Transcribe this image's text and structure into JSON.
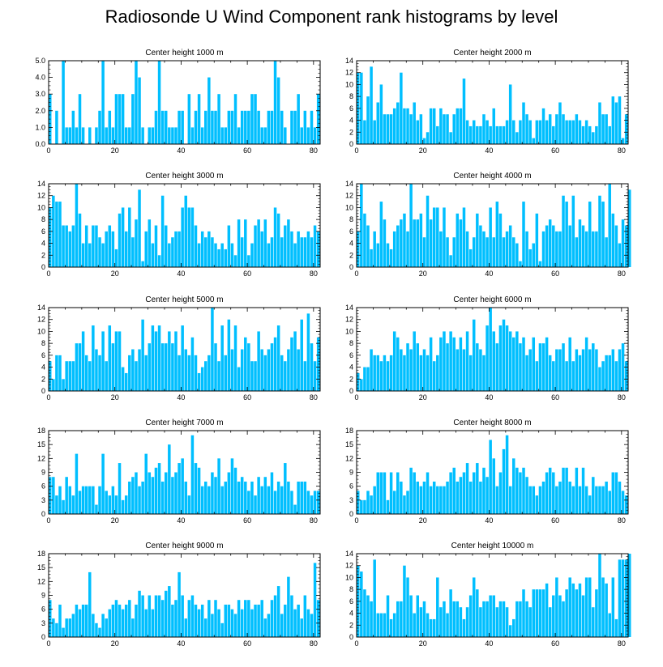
{
  "title": "Radiosonde U Wind Component rank histograms by level",
  "colors": {
    "bar": "#00BFFF",
    "bar_stroke": "#ffffff",
    "axis": "#000000"
  },
  "chart_data": [
    {
      "type": "bar",
      "title": "Center height 1000 m",
      "xlim": [
        0,
        82
      ],
      "ylim": [
        0,
        5
      ],
      "xticks": [
        0,
        20,
        40,
        60,
        80
      ],
      "yticks": [
        0,
        1,
        2,
        3,
        4,
        5
      ],
      "ytick_labels": [
        "0.0",
        "1.0",
        "2.0",
        "3.0",
        "4.0",
        "5.0"
      ],
      "values": [
        3,
        0,
        2,
        0,
        5,
        1,
        1,
        2,
        1,
        3,
        1,
        0,
        1,
        0,
        1,
        2,
        5,
        1,
        2,
        1,
        3,
        3,
        3,
        1,
        1,
        3,
        5,
        4,
        1,
        0,
        1,
        1,
        2,
        5,
        2,
        2,
        1,
        1,
        1,
        2,
        2,
        0,
        3,
        1,
        2,
        3,
        1,
        2,
        4,
        2,
        2,
        3,
        1,
        1,
        2,
        2,
        3,
        1,
        2,
        2,
        2,
        3,
        3,
        2,
        1,
        1,
        2,
        2,
        5,
        4,
        2,
        1,
        0,
        2,
        2,
        3,
        1,
        2,
        1,
        2,
        1,
        3
      ]
    },
    {
      "type": "bar",
      "title": "Center height 2000 m",
      "xlim": [
        0,
        82
      ],
      "ylim": [
        0,
        14
      ],
      "xticks": [
        0,
        20,
        40,
        60,
        80
      ],
      "yticks": [
        0,
        2,
        4,
        6,
        8,
        10,
        12,
        14
      ],
      "ytick_labels": [
        "0",
        "2",
        "4",
        "6",
        "8",
        "10",
        "12",
        "14"
      ],
      "values": [
        12,
        12,
        4,
        8,
        13,
        4,
        7,
        10,
        5,
        5,
        5,
        6,
        7,
        12,
        6,
        6,
        5,
        7,
        4,
        5,
        1,
        2,
        6,
        6,
        3,
        6,
        5,
        5,
        2,
        5,
        6,
        6,
        11,
        4,
        3,
        4,
        3,
        3,
        5,
        4,
        3,
        6,
        3,
        3,
        3,
        4,
        10,
        4,
        2,
        4,
        7,
        5,
        4,
        1,
        4,
        4,
        6,
        4,
        5,
        3,
        5,
        7,
        5,
        4,
        4,
        4,
        5,
        4,
        3,
        4,
        3,
        2,
        3,
        7,
        5,
        5,
        3,
        8,
        7,
        8,
        1,
        5
      ]
    },
    {
      "type": "bar",
      "title": "Center height 3000 m",
      "xlim": [
        0,
        82
      ],
      "ylim": [
        0,
        14
      ],
      "xticks": [
        0,
        20,
        40,
        60,
        80
      ],
      "yticks": [
        0,
        2,
        4,
        6,
        8,
        10,
        12,
        14
      ],
      "ytick_labels": [
        "0",
        "2",
        "4",
        "6",
        "8",
        "10",
        "12",
        "14"
      ],
      "values": [
        10,
        12,
        11,
        11,
        7,
        7,
        6,
        7,
        14,
        9,
        4,
        7,
        4,
        7,
        7,
        5,
        4,
        6,
        7,
        6,
        3,
        9,
        10,
        6,
        10,
        5,
        8,
        13,
        1,
        6,
        8,
        4,
        7,
        2,
        12,
        7,
        4,
        5,
        6,
        6,
        10,
        12,
        10,
        10,
        7,
        4,
        6,
        5,
        6,
        5,
        4,
        3,
        4,
        3,
        7,
        4,
        2,
        8,
        5,
        8,
        2,
        4,
        7,
        8,
        6,
        8,
        4,
        5,
        10,
        9,
        5,
        7,
        8,
        6,
        4,
        6,
        5,
        5,
        6,
        5,
        7,
        6
      ]
    },
    {
      "type": "bar",
      "title": "Center height 4000 m",
      "xlim": [
        0,
        82
      ],
      "ylim": [
        0,
        14
      ],
      "xticks": [
        0,
        20,
        40,
        60,
        80
      ],
      "yticks": [
        0,
        2,
        4,
        6,
        8,
        10,
        12,
        14
      ],
      "ytick_labels": [
        "0",
        "2",
        "4",
        "6",
        "8",
        "10",
        "12",
        "14"
      ],
      "values": [
        6,
        14,
        9,
        7,
        3,
        6,
        4,
        11,
        8,
        4,
        3,
        6,
        7,
        8,
        9,
        6,
        14,
        8,
        8,
        9,
        5,
        12,
        8,
        10,
        10,
        6,
        10,
        5,
        2,
        5,
        9,
        8,
        10,
        6,
        3,
        5,
        9,
        7,
        6,
        5,
        10,
        5,
        11,
        9,
        5,
        6,
        7,
        5,
        4,
        1,
        11,
        6,
        3,
        4,
        9,
        1,
        6,
        7,
        8,
        7,
        6,
        6,
        12,
        11,
        7,
        12,
        5,
        8,
        7,
        6,
        11,
        6,
        6,
        12,
        11,
        5,
        14,
        9,
        7,
        4,
        8,
        7,
        13
      ]
    },
    {
      "type": "bar",
      "title": "Center height 5000 m",
      "xlim": [
        0,
        82
      ],
      "ylim": [
        0,
        14
      ],
      "xticks": [
        0,
        20,
        40,
        60,
        80
      ],
      "yticks": [
        0,
        2,
        4,
        6,
        8,
        10,
        12,
        14
      ],
      "ytick_labels": [
        "0",
        "2",
        "4",
        "6",
        "8",
        "10",
        "12",
        "14"
      ],
      "values": [
        5,
        2,
        6,
        6,
        2,
        5,
        5,
        5,
        8,
        8,
        10,
        6,
        5,
        11,
        7,
        6,
        10,
        5,
        11,
        8,
        10,
        10,
        4,
        3,
        6,
        7,
        5,
        7,
        12,
        6,
        8,
        11,
        10,
        11,
        8,
        8,
        10,
        8,
        10,
        6,
        11,
        7,
        6,
        9,
        6,
        3,
        4,
        5,
        6,
        14,
        8,
        5,
        11,
        6,
        12,
        7,
        11,
        4,
        7,
        9,
        8,
        5,
        5,
        10,
        7,
        6,
        7,
        8,
        9,
        11,
        6,
        5,
        7,
        9,
        10,
        7,
        12,
        5,
        13,
        8,
        5,
        9
      ]
    },
    {
      "type": "bar",
      "title": "Center height 6000 m",
      "xlim": [
        0,
        82
      ],
      "ylim": [
        0,
        14
      ],
      "xticks": [
        0,
        20,
        40,
        60,
        80
      ],
      "yticks": [
        0,
        2,
        4,
        6,
        8,
        10,
        12,
        14
      ],
      "ytick_labels": [
        "0",
        "2",
        "4",
        "6",
        "8",
        "10",
        "12",
        "14"
      ],
      "values": [
        3,
        2,
        4,
        4,
        7,
        6,
        6,
        5,
        6,
        5,
        6,
        10,
        9,
        7,
        6,
        8,
        7,
        10,
        8,
        6,
        7,
        6,
        9,
        5,
        6,
        9,
        10,
        8,
        10,
        9,
        7,
        9,
        7,
        10,
        6,
        12,
        8,
        7,
        6,
        11,
        14,
        10,
        8,
        11,
        12,
        11,
        10,
        9,
        10,
        8,
        9,
        6,
        7,
        9,
        5,
        8,
        8,
        9,
        6,
        5,
        7,
        7,
        8,
        5,
        9,
        5,
        7,
        6,
        7,
        9,
        7,
        8,
        7,
        4,
        5,
        6,
        6,
        7,
        5,
        7,
        8,
        5
      ]
    },
    {
      "type": "bar",
      "title": "Center height 7000 m",
      "xlim": [
        0,
        82
      ],
      "ylim": [
        0,
        18
      ],
      "xticks": [
        0,
        20,
        40,
        60,
        80
      ],
      "yticks": [
        0,
        3,
        6,
        9,
        12,
        15,
        18
      ],
      "ytick_labels": [
        "0",
        "3",
        "6",
        "9",
        "12",
        "15",
        "18"
      ],
      "values": [
        8,
        8,
        4,
        6,
        3,
        8,
        6,
        4,
        13,
        5,
        6,
        6,
        6,
        6,
        2,
        6,
        13,
        5,
        4,
        6,
        4,
        11,
        3,
        4,
        7,
        8,
        9,
        6,
        7,
        13,
        9,
        8,
        10,
        11,
        7,
        9,
        15,
        8,
        9,
        11,
        12,
        7,
        4,
        17,
        11,
        10,
        6,
        7,
        6,
        9,
        8,
        12,
        6,
        7,
        9,
        12,
        10,
        7,
        8,
        7,
        5,
        7,
        4,
        8,
        6,
        8,
        6,
        9,
        5,
        7,
        6,
        11,
        7,
        5,
        2,
        7,
        7,
        7,
        5,
        4,
        5,
        5
      ]
    },
    {
      "type": "bar",
      "title": "Center height 8000 m",
      "xlim": [
        0,
        82
      ],
      "ylim": [
        0,
        18
      ],
      "xticks": [
        0,
        20,
        40,
        60,
        80
      ],
      "yticks": [
        0,
        3,
        6,
        9,
        12,
        15,
        18
      ],
      "ytick_labels": [
        "0",
        "3",
        "6",
        "9",
        "12",
        "15",
        "18"
      ],
      "values": [
        5,
        3,
        3,
        5,
        4,
        6,
        9,
        9,
        9,
        3,
        9,
        5,
        9,
        7,
        4,
        5,
        10,
        9,
        7,
        6,
        7,
        9,
        6,
        7,
        6,
        6,
        6,
        7,
        9,
        10,
        7,
        8,
        9,
        11,
        7,
        9,
        11,
        7,
        10,
        8,
        16,
        12,
        6,
        9,
        14,
        17,
        6,
        12,
        10,
        9,
        10,
        8,
        6,
        6,
        4,
        6,
        7,
        9,
        10,
        9,
        6,
        7,
        10,
        10,
        7,
        6,
        10,
        6,
        10,
        6,
        4,
        8,
        6,
        6,
        6,
        7,
        5,
        9,
        9,
        7,
        5,
        4
      ]
    },
    {
      "type": "bar",
      "title": "Center height 9000 m",
      "xlim": [
        0,
        82
      ],
      "ylim": [
        0,
        18
      ],
      "xticks": [
        0,
        20,
        40,
        60,
        80
      ],
      "yticks": [
        0,
        3,
        6,
        9,
        12,
        15,
        18
      ],
      "ytick_labels": [
        "0",
        "3",
        "6",
        "9",
        "12",
        "15",
        "18"
      ],
      "values": [
        8,
        4,
        3,
        7,
        2,
        4,
        4,
        5,
        7,
        6,
        7,
        7,
        14,
        5,
        3,
        2,
        5,
        4,
        6,
        7,
        8,
        7,
        6,
        7,
        8,
        4,
        7,
        10,
        9,
        6,
        9,
        6,
        9,
        9,
        8,
        10,
        11,
        7,
        8,
        14,
        9,
        4,
        8,
        9,
        7,
        6,
        7,
        4,
        8,
        5,
        8,
        6,
        3,
        7,
        7,
        6,
        5,
        8,
        6,
        8,
        8,
        6,
        7,
        7,
        8,
        4,
        5,
        8,
        9,
        11,
        5,
        7,
        13,
        9,
        6,
        7,
        4,
        9,
        6,
        5,
        16,
        8
      ]
    },
    {
      "type": "bar",
      "title": "Center height 10000 m",
      "xlim": [
        0,
        82
      ],
      "ylim": [
        0,
        14
      ],
      "xticks": [
        0,
        20,
        40,
        60,
        80
      ],
      "yticks": [
        0,
        2,
        4,
        6,
        8,
        10,
        12,
        14
      ],
      "ytick_labels": [
        "0",
        "2",
        "4",
        "6",
        "8",
        "10",
        "12",
        "14"
      ],
      "values": [
        12,
        11,
        8,
        7,
        6,
        13,
        4,
        4,
        4,
        7,
        3,
        4,
        6,
        6,
        12,
        10,
        7,
        4,
        7,
        5,
        6,
        4,
        3,
        3,
        10,
        5,
        6,
        4,
        8,
        6,
        6,
        5,
        3,
        5,
        7,
        10,
        8,
        5,
        6,
        6,
        7,
        7,
        5,
        6,
        6,
        5,
        2,
        3,
        6,
        6,
        8,
        6,
        5,
        8,
        8,
        8,
        8,
        9,
        5,
        7,
        10,
        7,
        6,
        8,
        10,
        9,
        8,
        9,
        7,
        10,
        10,
        5,
        8,
        14,
        10,
        9,
        4,
        10,
        3,
        13,
        13,
        13,
        14
      ]
    }
  ]
}
